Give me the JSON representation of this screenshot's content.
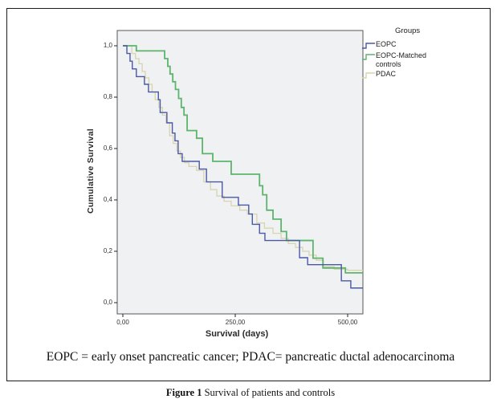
{
  "note": "EOPC = early onset pancreatic cancer; PDAC= pancreatic ductal adenocarcinoma",
  "figure_caption": {
    "label": "Figure 1",
    "text": "Survival of patients and controls"
  },
  "chart_data": {
    "type": "line",
    "subtype": "kaplan-meier-step",
    "title": "",
    "xlabel": "Survival (days)",
    "ylabel": "Cumulative Survival",
    "grid": false,
    "plot_bg": "#f0f1f3",
    "frame_color": "#55565a",
    "xlim": [
      0,
      534
    ],
    "ylim": [
      0,
      1.0
    ],
    "x_ticks": {
      "labels": [
        "0,00",
        "250,00",
        "500,00"
      ],
      "values": [
        0,
        250,
        500
      ]
    },
    "y_ticks": {
      "labels": [
        "0,0",
        "0,2",
        "0,4",
        "0,6",
        "0,8",
        "1,0"
      ],
      "values": [
        0,
        0.2,
        0.4,
        0.6,
        0.8,
        1.0
      ]
    },
    "legend": {
      "title": "Groups",
      "position": "top-right-outside",
      "entries": [
        "EOPC",
        "EOPC-Matched controls",
        "PDAC"
      ]
    },
    "series": [
      {
        "name": "EOPC",
        "color": "#4a58a5",
        "points": [
          [
            0,
            1.0
          ],
          [
            9,
            0.97
          ],
          [
            16,
            0.94
          ],
          [
            21,
            0.91
          ],
          [
            30,
            0.88
          ],
          [
            48,
            0.85
          ],
          [
            57,
            0.82
          ],
          [
            79,
            0.79
          ],
          [
            83,
            0.74
          ],
          [
            98,
            0.7
          ],
          [
            110,
            0.66
          ],
          [
            116,
            0.63
          ],
          [
            123,
            0.58
          ],
          [
            132,
            0.55
          ],
          [
            170,
            0.52
          ],
          [
            186,
            0.47
          ],
          [
            221,
            0.41
          ],
          [
            257,
            0.38
          ],
          [
            280,
            0.345
          ],
          [
            288,
            0.305
          ],
          [
            304,
            0.27
          ],
          [
            316,
            0.242
          ],
          [
            393,
            0.175
          ],
          [
            411,
            0.148
          ],
          [
            486,
            0.085
          ],
          [
            507,
            0.057
          ],
          [
            534,
            0.057
          ]
        ]
      },
      {
        "name": "EOPC-Matched controls",
        "color": "#5cb46d",
        "points": [
          [
            0,
            1.0
          ],
          [
            30,
            0.98
          ],
          [
            93,
            0.95
          ],
          [
            100,
            0.92
          ],
          [
            105,
            0.89
          ],
          [
            111,
            0.86
          ],
          [
            117,
            0.83
          ],
          [
            124,
            0.795
          ],
          [
            130,
            0.76
          ],
          [
            136,
            0.73
          ],
          [
            143,
            0.67
          ],
          [
            164,
            0.64
          ],
          [
            177,
            0.58
          ],
          [
            200,
            0.55
          ],
          [
            241,
            0.5
          ],
          [
            304,
            0.455
          ],
          [
            311,
            0.42
          ],
          [
            320,
            0.36
          ],
          [
            334,
            0.325
          ],
          [
            352,
            0.277
          ],
          [
            364,
            0.242
          ],
          [
            423,
            0.173
          ],
          [
            445,
            0.135
          ],
          [
            495,
            0.116
          ],
          [
            534,
            0.116
          ]
        ]
      },
      {
        "name": "PDAC",
        "color": "#d8d4ae",
        "points": [
          [
            0,
            1.0
          ],
          [
            20,
            0.97
          ],
          [
            28,
            0.95
          ],
          [
            36,
            0.93
          ],
          [
            43,
            0.9
          ],
          [
            50,
            0.875
          ],
          [
            58,
            0.85
          ],
          [
            65,
            0.82
          ],
          [
            72,
            0.79
          ],
          [
            80,
            0.76
          ],
          [
            88,
            0.73
          ],
          [
            96,
            0.7
          ],
          [
            104,
            0.65
          ],
          [
            112,
            0.62
          ],
          [
            120,
            0.59
          ],
          [
            128,
            0.565
          ],
          [
            137,
            0.545
          ],
          [
            147,
            0.53
          ],
          [
            164,
            0.515
          ],
          [
            180,
            0.47
          ],
          [
            195,
            0.44
          ],
          [
            209,
            0.415
          ],
          [
            225,
            0.395
          ],
          [
            241,
            0.377
          ],
          [
            260,
            0.36
          ],
          [
            277,
            0.345
          ],
          [
            298,
            0.31
          ],
          [
            315,
            0.29
          ],
          [
            334,
            0.27
          ],
          [
            352,
            0.25
          ],
          [
            368,
            0.23
          ],
          [
            384,
            0.215
          ],
          [
            400,
            0.2
          ],
          [
            414,
            0.185
          ],
          [
            430,
            0.165
          ],
          [
            446,
            0.14
          ],
          [
            470,
            0.13
          ],
          [
            500,
            0.126
          ],
          [
            534,
            0.126
          ]
        ]
      }
    ]
  }
}
